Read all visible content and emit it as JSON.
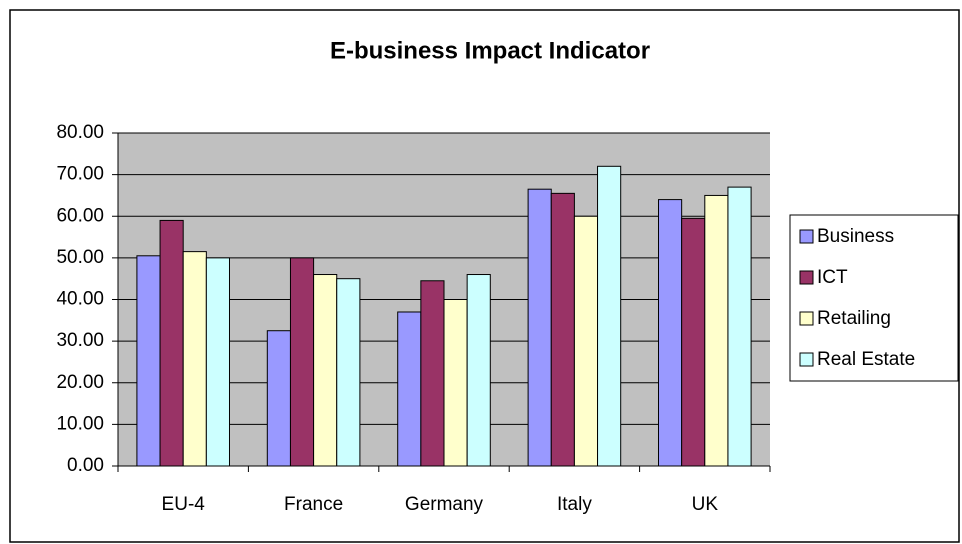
{
  "chart_data": {
    "type": "bar",
    "title": "E-business Impact Indicator",
    "categories": [
      "EU-4",
      "France",
      "Germany",
      "Italy",
      "UK"
    ],
    "series": [
      {
        "name": "Business",
        "color": "#9999ff",
        "values": [
          50.5,
          32.5,
          37,
          66.5,
          64
        ]
      },
      {
        "name": "ICT",
        "color": "#993366",
        "values": [
          59,
          50,
          44.5,
          65.5,
          59.5
        ]
      },
      {
        "name": "Retailing",
        "color": "#ffffcc",
        "values": [
          51.5,
          46,
          40,
          60,
          65
        ]
      },
      {
        "name": "Real Estate",
        "color": "#ccffff",
        "values": [
          50,
          45,
          46,
          72,
          67
        ]
      }
    ],
    "ylim": [
      0,
      80
    ],
    "yticks": [
      {
        "value": 0,
        "label": "0.00"
      },
      {
        "value": 10,
        "label": "10.00"
      },
      {
        "value": 20,
        "label": "20.00"
      },
      {
        "value": 30,
        "label": "30.00"
      },
      {
        "value": 40,
        "label": "40.00"
      },
      {
        "value": 50,
        "label": "50.00"
      },
      {
        "value": 60,
        "label": "60.00"
      },
      {
        "value": 70,
        "label": "70.00"
      },
      {
        "value": 80,
        "label": "80.00"
      }
    ],
    "grid": true,
    "legend": "right"
  }
}
